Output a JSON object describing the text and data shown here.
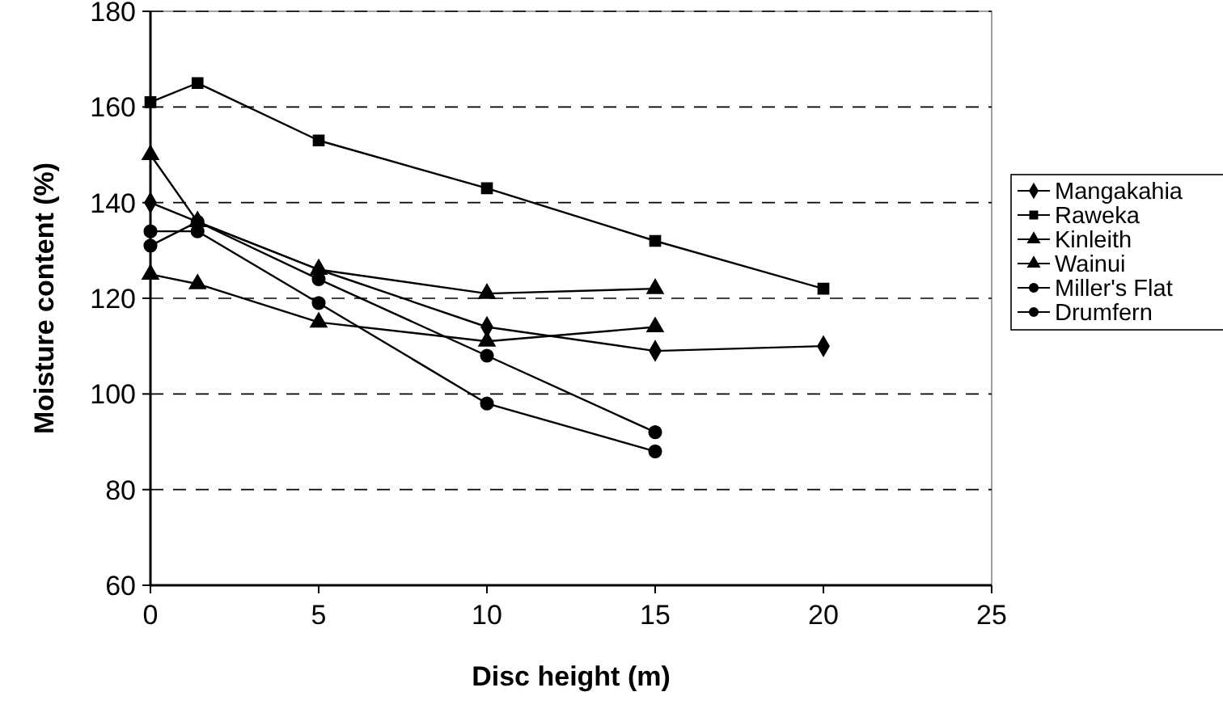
{
  "chart_data": {
    "type": "line",
    "xlabel": "Disc height (m)",
    "ylabel": "Moisture content (%)",
    "xlim": [
      0,
      25
    ],
    "xticks": [
      0,
      5,
      10,
      15,
      20,
      25
    ],
    "ylim": [
      60,
      180
    ],
    "yticks": [
      60,
      80,
      100,
      120,
      140,
      160,
      180
    ],
    "grid": "y",
    "legend": "right",
    "line_style": "solid",
    "series": [
      {
        "name": "Mangakahia",
        "color": "#000000",
        "marker": "diamond",
        "x": [
          0,
          1.4,
          5,
          10,
          15,
          20
        ],
        "values": [
          140,
          136,
          126,
          114,
          109,
          110
        ]
      },
      {
        "name": "Raweka",
        "color": "#000000",
        "marker": "square",
        "x": [
          0,
          1.4,
          5,
          10,
          15,
          20
        ],
        "values": [
          161,
          165,
          153,
          143,
          132,
          122
        ]
      },
      {
        "name": "Kinleith",
        "color": "#000000",
        "marker": "triangle",
        "x": [
          0,
          1.4,
          5,
          10,
          15
        ],
        "values": [
          150,
          136,
          126,
          121,
          122
        ]
      },
      {
        "name": "Wainui",
        "color": "#000000",
        "marker": "triangle",
        "x": [
          0,
          1.4,
          5,
          10,
          15
        ],
        "values": [
          125,
          123,
          115,
          111,
          114
        ]
      },
      {
        "name": "Miller's Flat",
        "color": "#000000",
        "marker": "circle",
        "x": [
          0,
          1.4,
          5,
          10,
          15
        ],
        "values": [
          131,
          136,
          124,
          108,
          92
        ]
      },
      {
        "name": "Drumfern",
        "color": "#000000",
        "marker": "circle",
        "x": [
          0,
          1.4,
          5,
          10,
          15
        ],
        "values": [
          134,
          134,
          119,
          98,
          88
        ]
      }
    ]
  }
}
